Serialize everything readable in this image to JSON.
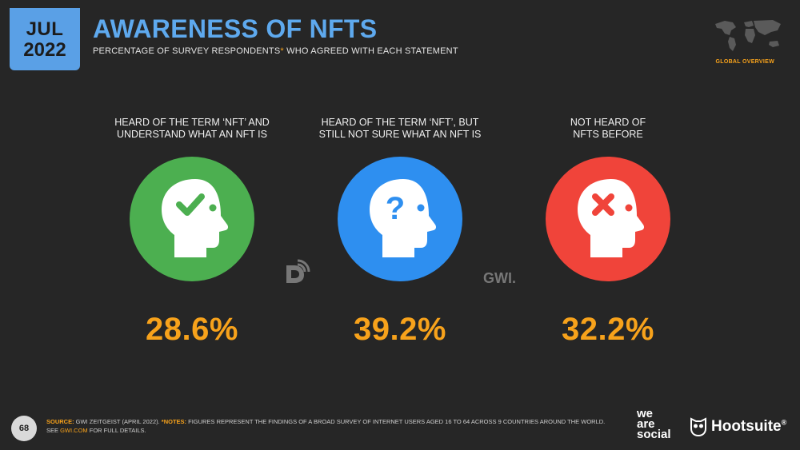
{
  "header": {
    "month": "JUL",
    "year": "2022",
    "title": "AWARENESS OF NFTS",
    "subtitle_before": "PERCENTAGE OF SURVEY RESPONDENTS",
    "subtitle_star": "*",
    "subtitle_after": " WHO AGREED WITH EACH STATEMENT",
    "region_label": "GLOBAL OVERVIEW"
  },
  "chart_data": {
    "type": "table",
    "unit": "%",
    "categories": [
      "HEARD OF THE TERM ‘NFT’ AND\nUNDERSTAND WHAT AN NFT IS",
      "HEARD OF THE TERM ‘NFT’, BUT\nSTILL NOT SURE WHAT AN NFT IS",
      "NOT HEARD OF\nNFTS BEFORE"
    ],
    "values": [
      28.6,
      39.2,
      32.2
    ],
    "value_labels": [
      "28.6%",
      "39.2%",
      "32.2%"
    ],
    "colors": [
      "#4caf50",
      "#2e8ff0",
      "#f0443a"
    ],
    "icons": [
      "head-check-icon",
      "head-question-icon",
      "head-cross-icon"
    ]
  },
  "watermarks": {
    "right": "GWI."
  },
  "footer": {
    "page_number": "68",
    "source_label": "SOURCE:",
    "source_text": " GWI ZEITGEIST (APRIL 2022). ",
    "notes_label": "*NOTES:",
    "notes_text": " FIGURES REPRESENT THE FINDINGS OF A BROAD SURVEY OF INTERNET USERS AGED 16 TO 64 ACROSS 9 COUNTRIES AROUND THE WORLD.",
    "see_text": "SEE ",
    "link_text": "GWI.COM",
    "see_after": " FOR FULL DETAILS."
  },
  "brands": {
    "was_line1": "we",
    "was_line2": "are",
    "was_line3": "social",
    "hootsuite": "Hootsuite",
    "hootsuite_mark": "®"
  }
}
